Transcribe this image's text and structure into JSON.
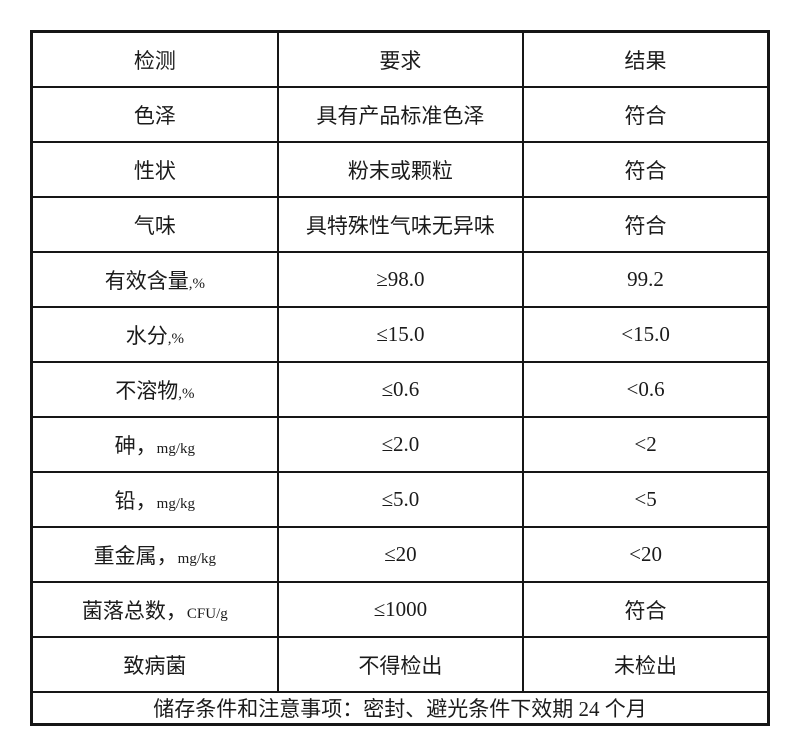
{
  "table": {
    "headers": [
      "检测",
      "要求",
      "结果"
    ],
    "rows": [
      {
        "item": "色泽",
        "unit": "",
        "requirement": "具有产品标准色泽",
        "result": "符合"
      },
      {
        "item": "性状",
        "unit": "",
        "requirement": "粉末或颗粒",
        "result": "符合"
      },
      {
        "item": "气味",
        "unit": "",
        "requirement": "具特殊性气味无异味",
        "result": "符合"
      },
      {
        "item": "有效含量",
        "unit": ",%",
        "requirement": "≥98.0",
        "result": "99.2"
      },
      {
        "item": "水分",
        "unit": ",%",
        "requirement": "≤15.0",
        "result": "<15.0"
      },
      {
        "item": "不溶物",
        "unit": ",%",
        "requirement": "≤0.6",
        "result": "<0.6"
      },
      {
        "item": "砷，",
        "unit": "mg/kg",
        "requirement": "≤2.0",
        "result": "<2"
      },
      {
        "item": "铅，",
        "unit": "mg/kg",
        "requirement": "≤5.0",
        "result": "<5"
      },
      {
        "item": "重金属，",
        "unit": "mg/kg",
        "requirement": "≤20",
        "result": "<20"
      },
      {
        "item": "菌落总数，",
        "unit": "CFU/g",
        "requirement": "≤1000",
        "result": "符合"
      },
      {
        "item": "致病菌",
        "unit": "",
        "requirement": "不得检出",
        "result": "未检出"
      }
    ],
    "footer": "储存条件和注意事项：密封、避光条件下效期 24 个月"
  }
}
